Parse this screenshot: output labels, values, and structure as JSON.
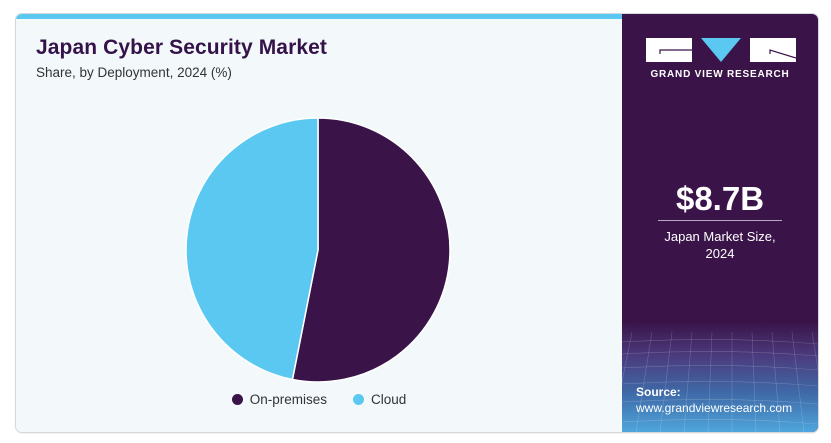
{
  "header": {
    "title": "Japan Cyber Security Market",
    "subtitle": "Share, by Deployment, 2024 (%)"
  },
  "brand": {
    "name": "GRAND VIEW RESEARCH",
    "colors": {
      "primary": "#3a1349",
      "accent": "#5bc8f2"
    }
  },
  "stat": {
    "value": "$8.7B",
    "label_line1": "Japan Market Size,",
    "label_line2": "2024"
  },
  "source": {
    "label": "Source:",
    "url": "www.grandviewresearch.com"
  },
  "chart_data": {
    "type": "pie",
    "title": "Japan Cyber Security Market",
    "subtitle": "Share, by Deployment, 2024 (%)",
    "categories": [
      "On-premises",
      "Cloud"
    ],
    "values": [
      53.1,
      46.9
    ],
    "colors": [
      "#3a1349",
      "#5bc8f2"
    ],
    "start_angle_deg": 0,
    "direction": "clockwise",
    "legend_position": "bottom"
  }
}
